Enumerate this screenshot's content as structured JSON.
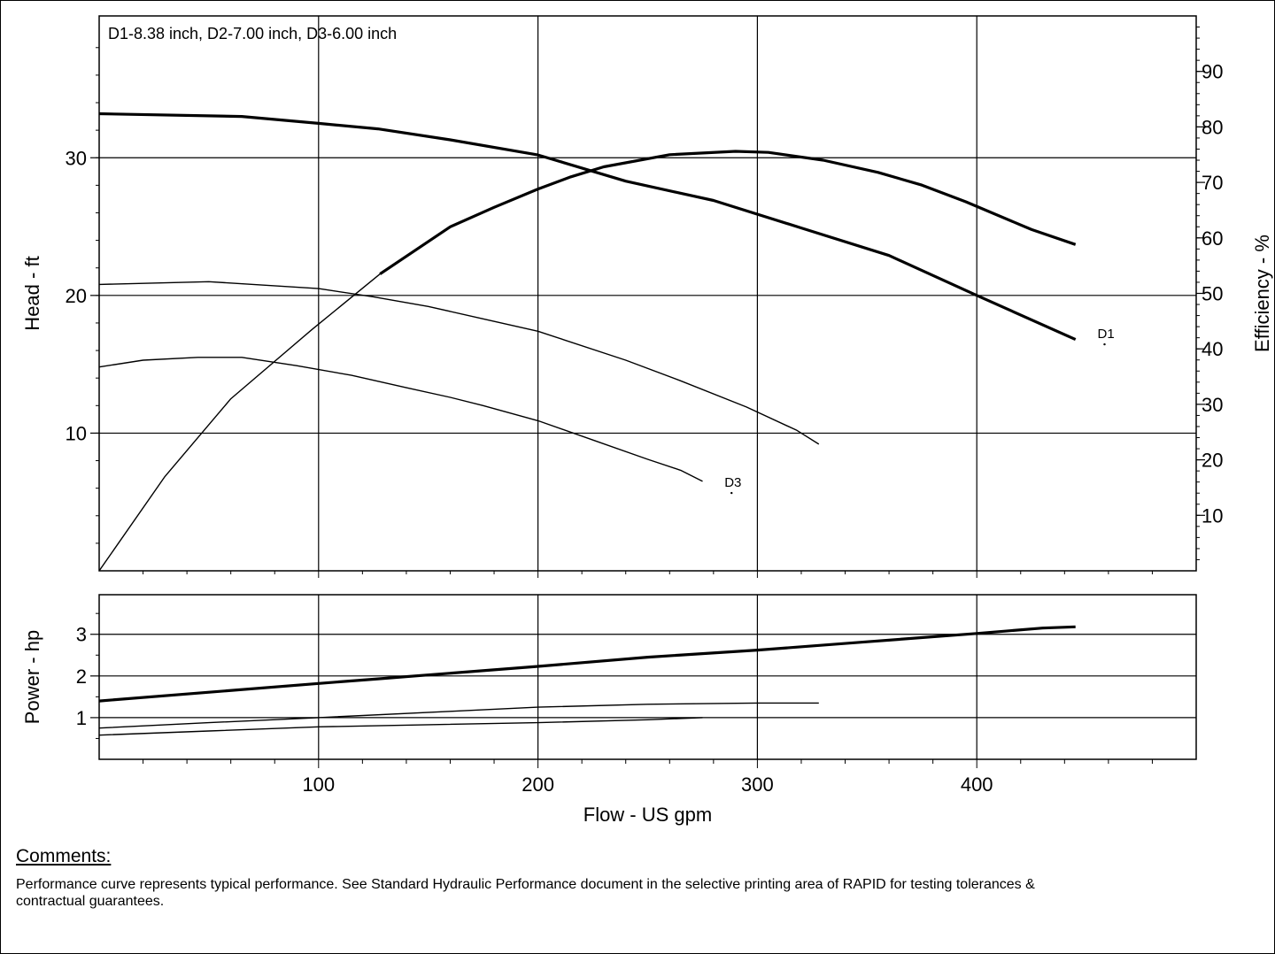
{
  "chart_data": [
    {
      "type": "line",
      "title": "D1-8.38 inch,  D2-7.00 inch,  D3-6.00 inch",
      "xlabel": "",
      "ylabel": "Head - ft",
      "y2label": "Efficiency - %",
      "xlim": [
        0,
        500
      ],
      "ylim": [
        0,
        40.3
      ],
      "y2lim": [
        0,
        100
      ],
      "yticks": [
        "10",
        "20",
        "30"
      ],
      "y2ticks": [
        "10",
        "20",
        "30",
        "40",
        "50",
        "60",
        "70",
        "80",
        "90"
      ],
      "grid": true,
      "series": [
        {
          "name": "D1",
          "axis": "head",
          "weight": "bold",
          "x": [
            0,
            65,
            100,
            127,
            160,
            200,
            240,
            280,
            320,
            360,
            400,
            445
          ],
          "y": [
            33.2,
            33.0,
            32.5,
            32.1,
            31.3,
            30.2,
            28.3,
            26.9,
            24.9,
            22.9,
            20.0,
            16.8
          ]
        },
        {
          "name": "",
          "axis": "head",
          "weight": "thin",
          "x": [
            0,
            50,
            100,
            125,
            150,
            175,
            200,
            240,
            265,
            295,
            318,
            328
          ],
          "y": [
            20.8,
            21.0,
            20.5,
            19.9,
            19.2,
            18.3,
            17.4,
            15.3,
            13.8,
            11.9,
            10.2,
            9.2
          ]
        },
        {
          "name": "D3",
          "axis": "head",
          "weight": "thin",
          "x": [
            0,
            20,
            45,
            65,
            90,
            115,
            140,
            160,
            175,
            200,
            225,
            250,
            265,
            275
          ],
          "y": [
            14.8,
            15.3,
            15.5,
            15.5,
            14.9,
            14.2,
            13.3,
            12.6,
            12.0,
            10.9,
            9.5,
            8.1,
            7.3,
            6.5
          ]
        },
        {
          "name": "",
          "axis": "efficiency",
          "weight": "thin",
          "x": [
            0,
            30,
            60,
            97,
            128
          ],
          "y": [
            0,
            17,
            31,
            43.5,
            53.5
          ]
        },
        {
          "name": "",
          "axis": "efficiency",
          "weight": "bold",
          "x": [
            128,
            160,
            180,
            200,
            215,
            230,
            260,
            290,
            305,
            330,
            355,
            375,
            395,
            425,
            445
          ],
          "y": [
            53.5,
            62.0,
            65.5,
            68.8,
            71.0,
            72.8,
            75.0,
            75.6,
            75.4,
            74.0,
            71.8,
            69.5,
            66.5,
            61.5,
            58.8
          ]
        }
      ],
      "annotations": [
        {
          "text": "D1",
          "x": 455,
          "y": 16.9
        },
        {
          "text": "D3",
          "x": 285,
          "y": 6.1
        }
      ]
    },
    {
      "type": "line",
      "title": "",
      "xlabel": "Flow - US gpm",
      "ylabel": "Power - hp",
      "xlim": [
        0,
        500
      ],
      "ylim": [
        0,
        3.95
      ],
      "xticks": [
        "100",
        "200",
        "300",
        "400"
      ],
      "yticks": [
        "1",
        "2",
        "3"
      ],
      "grid": true,
      "series": [
        {
          "name": "D1",
          "weight": "bold",
          "x": [
            0,
            100,
            127,
            200,
            250,
            300,
            350,
            400,
            430,
            445
          ],
          "y": [
            1.4,
            1.82,
            1.93,
            2.23,
            2.45,
            2.62,
            2.82,
            3.02,
            3.15,
            3.18
          ]
        },
        {
          "name": "",
          "weight": "thin",
          "x": [
            0,
            50,
            100,
            160,
            200,
            250,
            300,
            328
          ],
          "y": [
            0.75,
            0.88,
            1.0,
            1.15,
            1.25,
            1.32,
            1.35,
            1.35
          ]
        },
        {
          "name": "D3",
          "weight": "thin",
          "x": [
            0,
            50,
            100,
            150,
            200,
            250,
            275
          ],
          "y": [
            0.58,
            0.68,
            0.78,
            0.83,
            0.88,
            0.95,
            1.0
          ]
        }
      ]
    }
  ],
  "comments": {
    "heading": "Comments:",
    "text": "Performance curve represents typical performance.  See Standard Hydraulic Performance document in the selective printing area of RAPID for testing tolerances & contractual guarantees."
  }
}
